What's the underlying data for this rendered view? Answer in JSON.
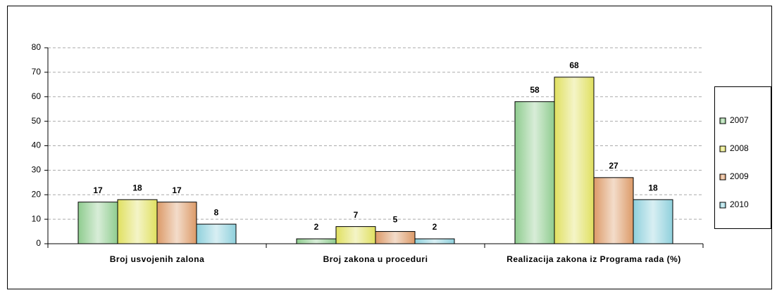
{
  "chart_data": {
    "type": "bar",
    "categories": [
      "Broj usvojenih zalona",
      "Broj zakona u proceduri",
      "Realizacija zakona iz Programa rada (%)"
    ],
    "series": [
      {
        "name": "2007",
        "color": "#8fcc8f",
        "values": [
          17,
          2,
          58
        ]
      },
      {
        "name": "2008",
        "color": "#e0e060",
        "values": [
          18,
          7,
          68
        ]
      },
      {
        "name": "2009",
        "color": "#dc9a68",
        "values": [
          17,
          5,
          27
        ]
      },
      {
        "name": "2010",
        "color": "#8fd0dc",
        "values": [
          8,
          2,
          18
        ]
      }
    ],
    "ylim": [
      0,
      80
    ],
    "yticks": [
      0,
      10,
      20,
      30,
      40,
      50,
      60,
      70,
      80
    ],
    "grid": true,
    "legend": "right"
  }
}
